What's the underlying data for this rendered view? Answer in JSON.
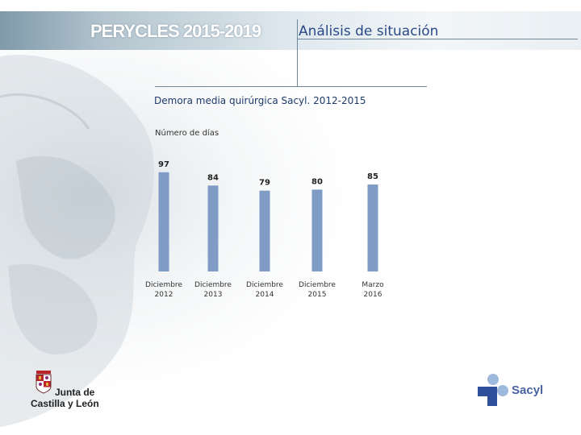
{
  "header": {
    "brand": "PERYCLES 2015-2019",
    "section": "Análisis de situación"
  },
  "colors": {
    "bar": "#7f9cc6",
    "value_label": "#222222",
    "accent": "#2a4a86"
  },
  "chart_data": {
    "type": "bar",
    "title": "Demora media quirúrgica Sacyl. 2012-2015",
    "ylabel": "Número de días",
    "xlabel": "",
    "categories": [
      [
        "Diciembre",
        "2012"
      ],
      [
        "Diciembre",
        "2013"
      ],
      [
        "Diciembre",
        "2014"
      ],
      [
        "Diciembre",
        "2015"
      ],
      [
        "Marzo",
        "2016"
      ]
    ],
    "values": [
      97,
      84,
      79,
      80,
      85
    ],
    "ylim": [
      0,
      100
    ],
    "grid": false,
    "legend": false,
    "data_labels": true
  },
  "footer": {
    "left_logo_line1": "Junta de",
    "left_logo_line2": "Castilla y León",
    "right_logo_text": "Sacyl",
    "left_logo_icon": "coat-of-arms",
    "right_logo_icon": "sacyl-cross"
  }
}
